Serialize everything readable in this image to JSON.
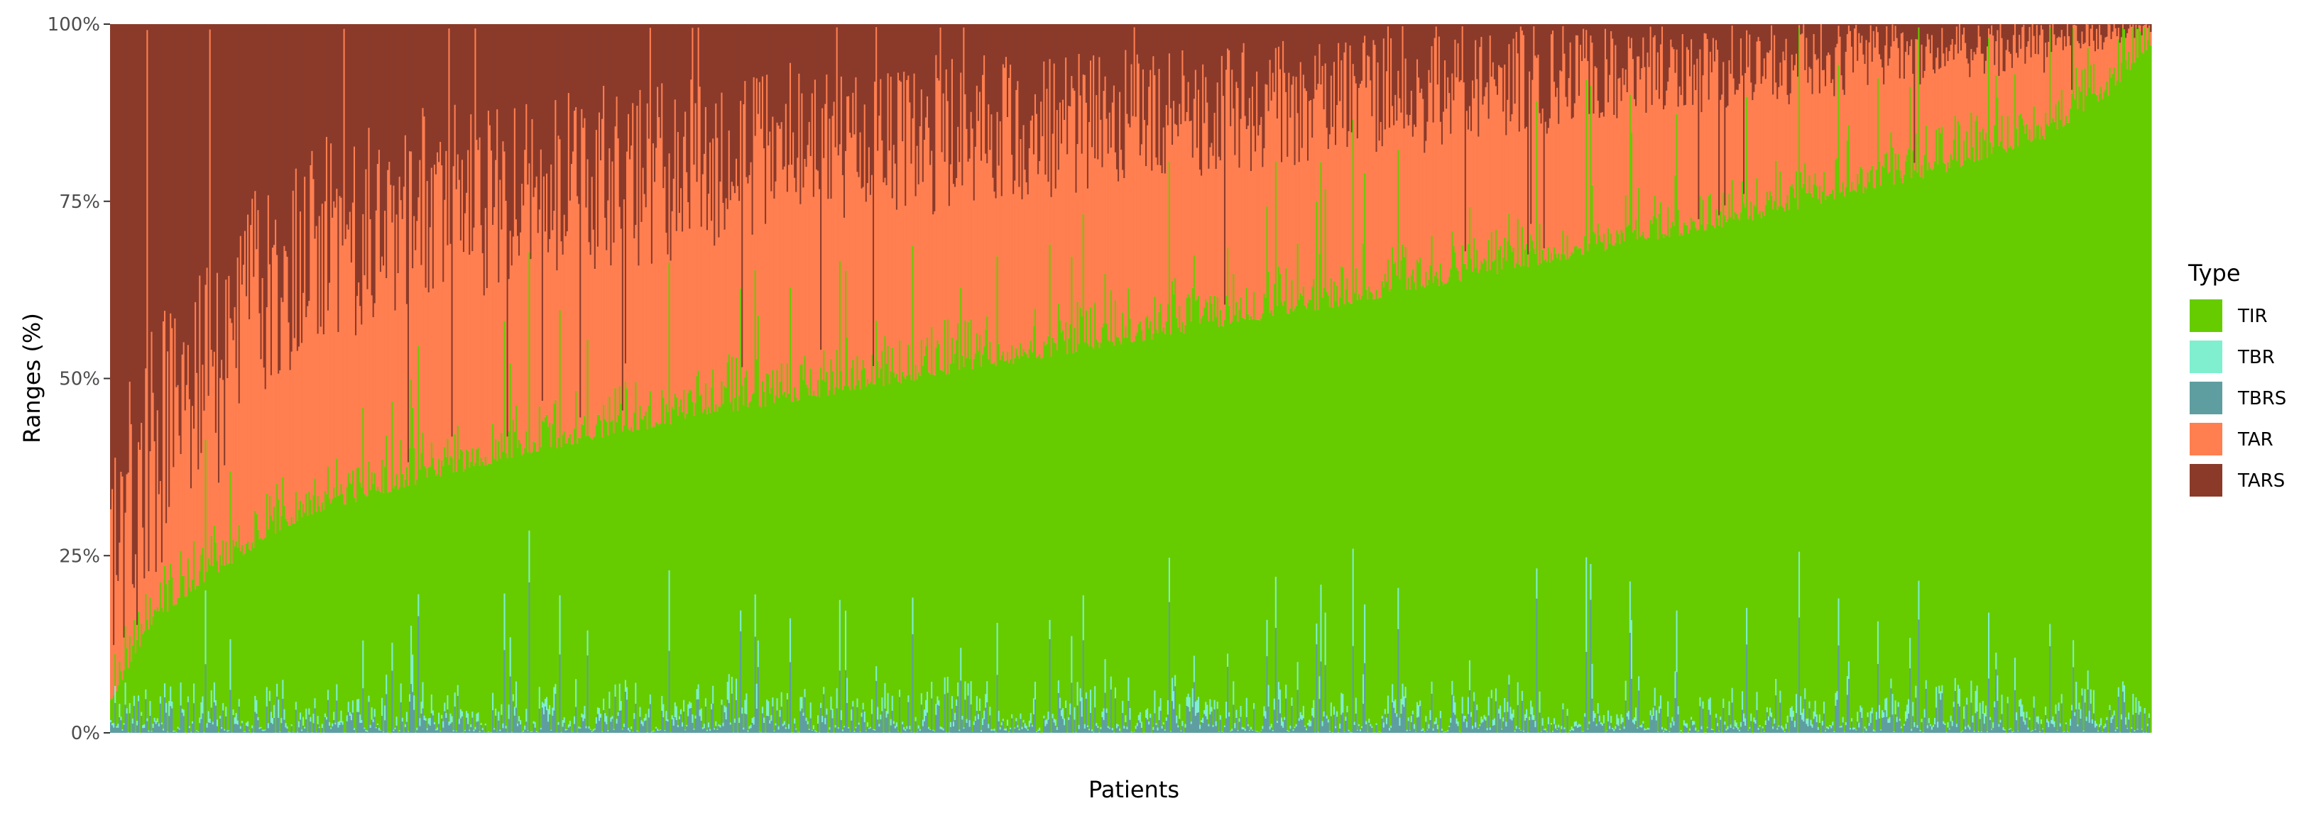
{
  "chart_data": {
    "type": "bar",
    "stacked": true,
    "percent": true,
    "xlabel": "Patients",
    "ylabel": "Ranges (%)",
    "ylim": [
      0,
      100
    ],
    "yticks": [
      0,
      25,
      50,
      75,
      100
    ],
    "ytick_labels": [
      "0%",
      "25%",
      "50%",
      "75%",
      "100%"
    ],
    "x_tick_labels": "none",
    "grid": false,
    "legend": {
      "title": "Type",
      "placement": "right",
      "entries": [
        {
          "name": "TIR",
          "color": "#66CC00"
        },
        {
          "name": "TBR",
          "color": "#7FEFCF"
        },
        {
          "name": "TBRS",
          "color": "#5F9EA0"
        },
        {
          "name": "TAR",
          "color": "#FF7F50"
        },
        {
          "name": "TARS",
          "color": "#8B3A2A"
        }
      ]
    },
    "stack_order_bottom_to_top": [
      "TBRS",
      "TBR",
      "TIR",
      "TAR",
      "TARS"
    ],
    "sorted_by": "TIR ascending",
    "n_patients_approx": 1400,
    "tir_profile": {
      "percentile": [
        0,
        1,
        2,
        4,
        6,
        8,
        10,
        15,
        20,
        30,
        40,
        50,
        60,
        70,
        80,
        90,
        95,
        98,
        100
      ],
      "TIR": [
        3,
        10,
        15,
        20,
        24,
        28,
        31,
        35,
        39,
        45,
        50,
        55,
        60,
        66,
        72,
        79,
        84,
        90,
        97
      ]
    },
    "tar_share_of_above_range": {
      "percentile": [
        0,
        10,
        20,
        40,
        60,
        80,
        100
      ],
      "TAR_fraction": [
        0.2,
        0.55,
        0.6,
        0.68,
        0.72,
        0.78,
        0.8
      ]
    },
    "tbr_total_typical_range": [
      0,
      37
    ],
    "tbr_total_typical_mean": 4
  }
}
